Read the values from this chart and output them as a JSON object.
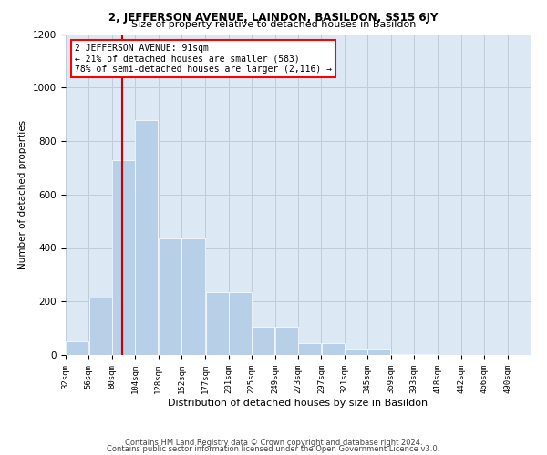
{
  "title": "2, JEFFERSON AVENUE, LAINDON, BASILDON, SS15 6JY",
  "subtitle": "Size of property relative to detached houses in Basildon",
  "xlabel": "Distribution of detached houses by size in Basildon",
  "ylabel": "Number of detached properties",
  "footer_line1": "Contains HM Land Registry data © Crown copyright and database right 2024.",
  "footer_line2": "Contains public sector information licensed under the Open Government Licence v3.0.",
  "annotation_line1": "2 JEFFERSON AVENUE: 91sqm",
  "annotation_line2": "← 21% of detached houses are smaller (583)",
  "annotation_line3": "78% of semi-detached houses are larger (2,116) →",
  "property_value": 91,
  "bar_edges": [
    32,
    56,
    80,
    104,
    128,
    152,
    177,
    201,
    225,
    249,
    273,
    297,
    321,
    345,
    369,
    393,
    418,
    442,
    466,
    490,
    514
  ],
  "bar_heights": [
    50,
    215,
    730,
    880,
    435,
    435,
    235,
    235,
    105,
    105,
    45,
    45,
    20,
    20,
    5,
    5,
    0,
    0,
    0,
    0
  ],
  "bar_color": "#b8cfe8",
  "bar_edgecolor": "white",
  "line_color": "#cc0000",
  "background_color": "#ffffff",
  "plot_bg_color": "#dde8f5",
  "grid_color": "#c0ccd8",
  "ylim": [
    0,
    1200
  ],
  "yticks": [
    0,
    200,
    400,
    600,
    800,
    1000,
    1200
  ],
  "title_fontsize": 8.5,
  "subtitle_fontsize": 8.0,
  "ylabel_fontsize": 7.5,
  "xlabel_fontsize": 8.0,
  "ytick_fontsize": 7.5,
  "xtick_fontsize": 6.5,
  "annotation_fontsize": 7.0,
  "footer_fontsize": 6.0
}
